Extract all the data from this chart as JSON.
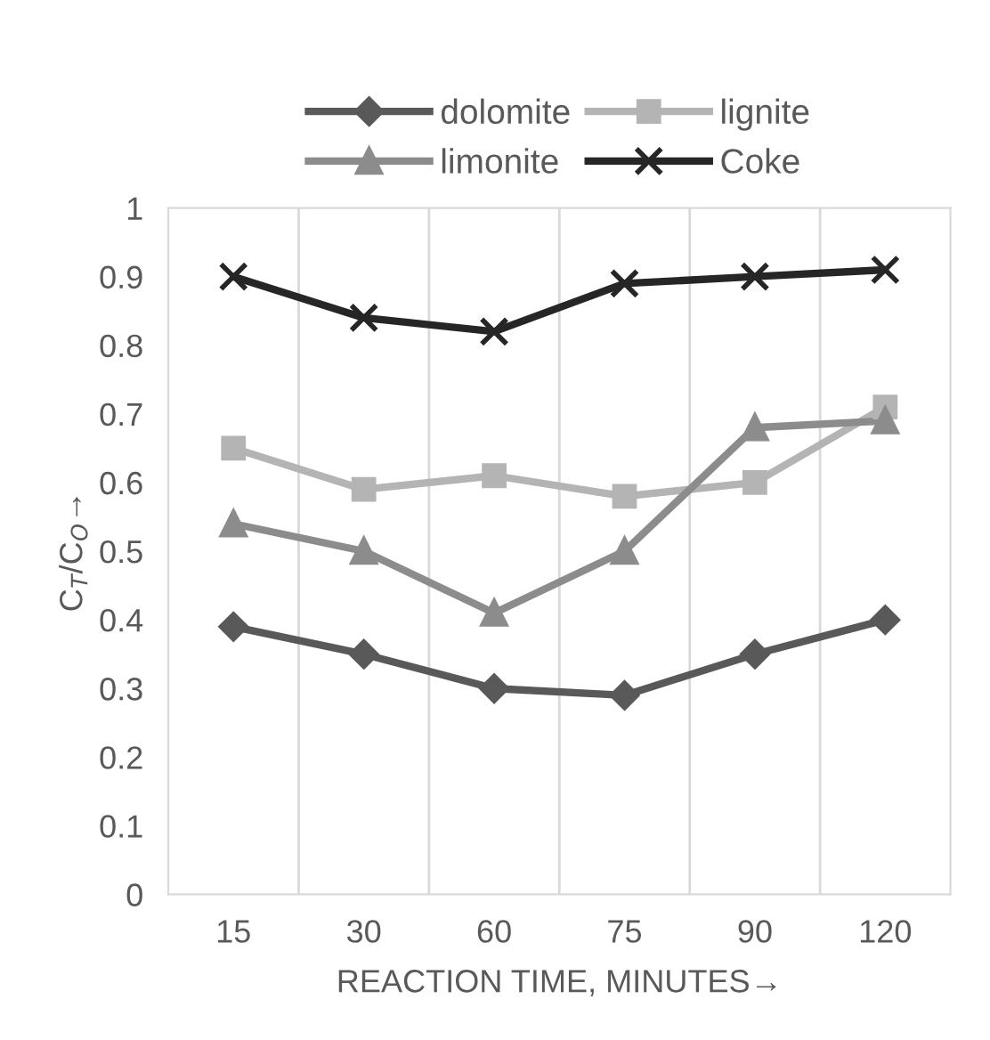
{
  "chart_data": {
    "type": "line",
    "xlabel": "REACTION TIME, MINUTES→",
    "ylabel": "C$_{T}$/C$_{O}$→",
    "categories": [
      "15",
      "30",
      "60",
      "75",
      "90",
      "120"
    ],
    "ylim": [
      0,
      1
    ],
    "yticks": [
      0,
      0.1,
      0.2,
      0.3,
      0.4,
      0.5,
      0.6,
      0.7,
      0.8,
      0.9,
      1
    ],
    "grid": "x",
    "legend": "top",
    "line_style": "solid",
    "series": [
      {
        "name": "dolomite",
        "color": "#595959",
        "marker": "diamond",
        "values": [
          0.39,
          0.35,
          0.3,
          0.29,
          0.35,
          0.4
        ]
      },
      {
        "name": "lignite",
        "color": "#b4b4b4",
        "marker": "square",
        "values": [
          0.65,
          0.59,
          0.61,
          0.58,
          0.6,
          0.71
        ]
      },
      {
        "name": "limonite",
        "color": "#8c8c8c",
        "marker": "triangle",
        "values": [
          0.54,
          0.5,
          0.41,
          0.5,
          0.68,
          0.69
        ]
      },
      {
        "name": "Coke",
        "color": "#262626",
        "marker": "cross",
        "values": [
          0.9,
          0.84,
          0.82,
          0.89,
          0.9,
          0.91
        ]
      }
    ]
  }
}
